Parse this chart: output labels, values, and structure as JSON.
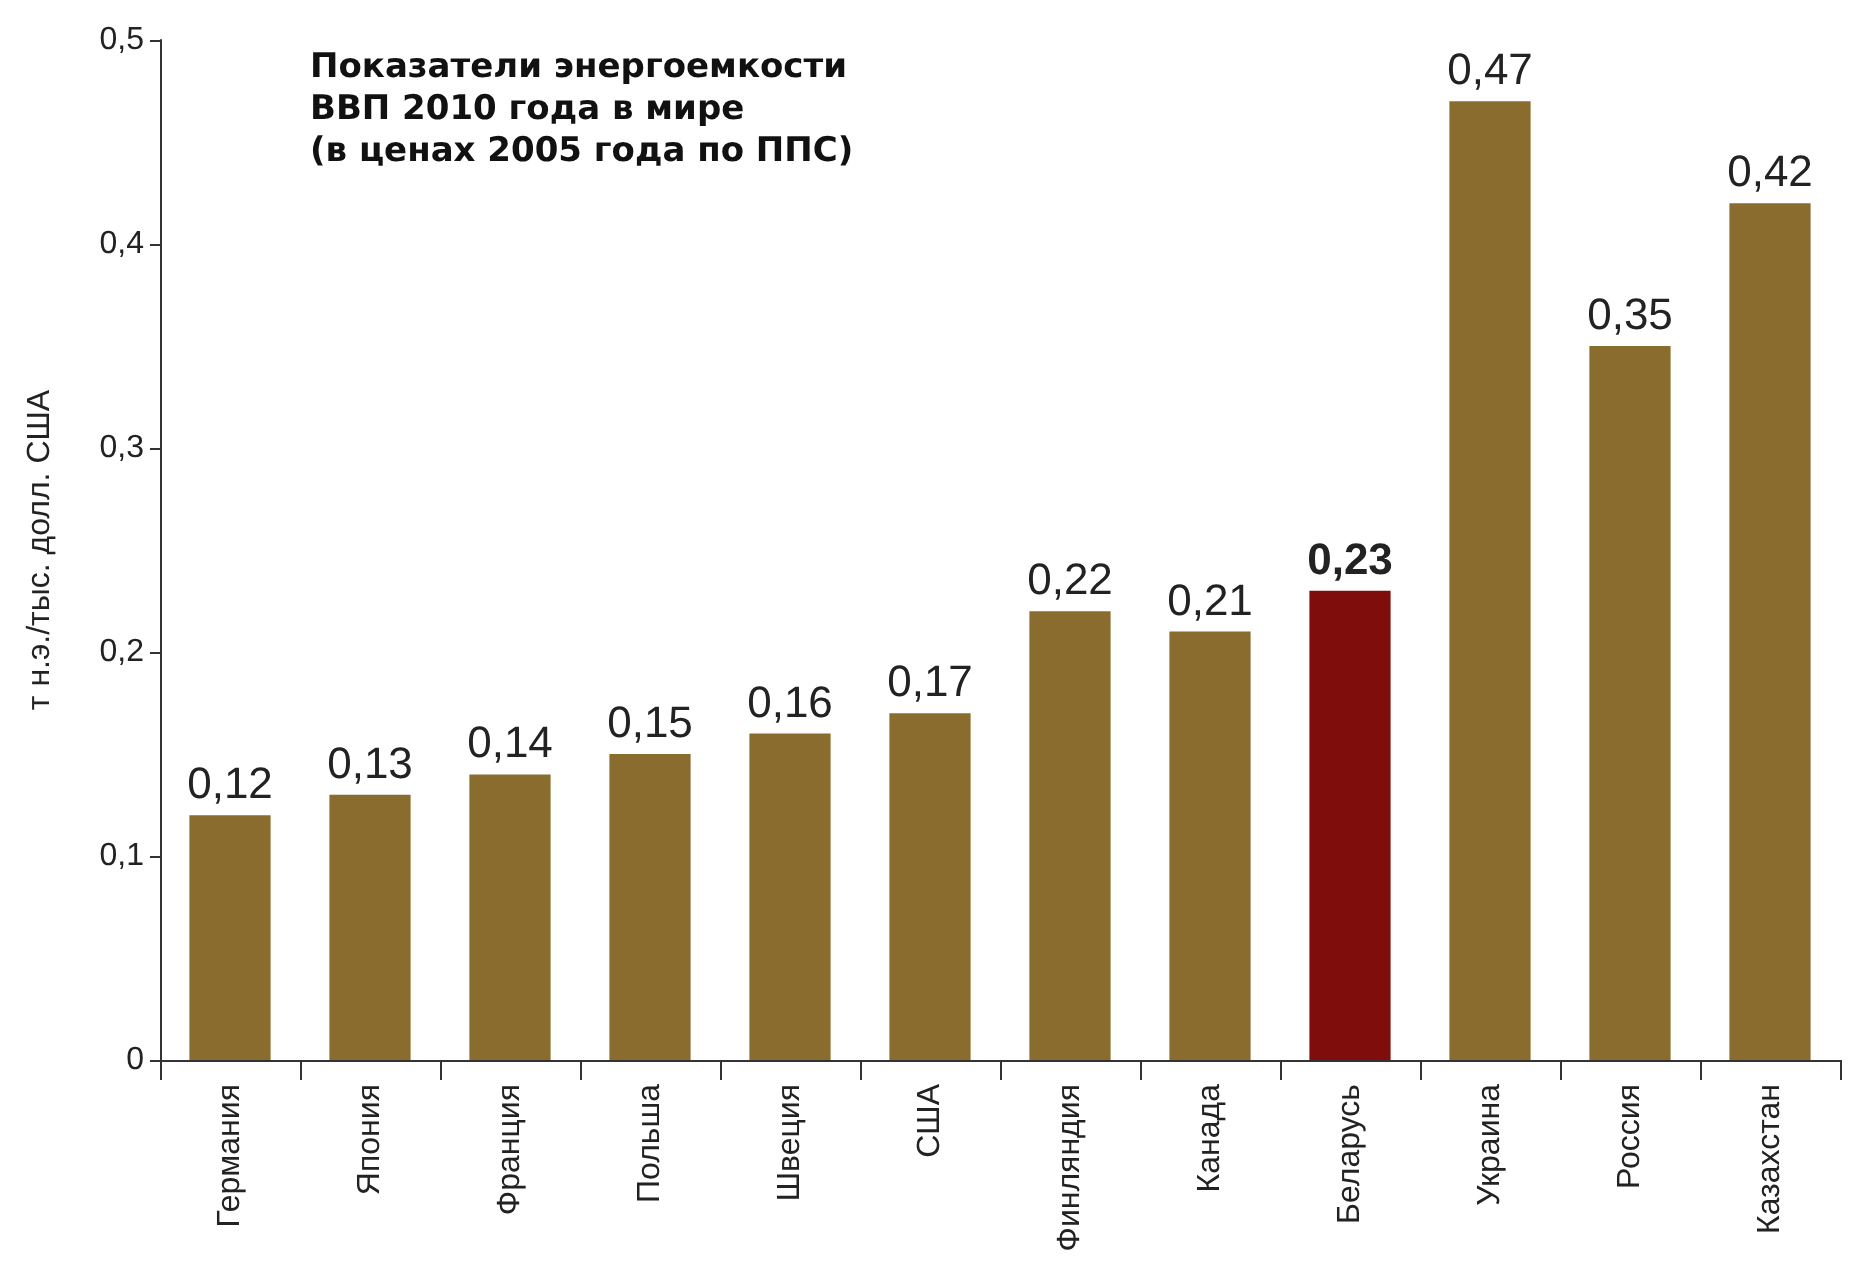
{
  "chart_data": {
    "type": "bar",
    "title": "Показатели энергоемкости\nВВП 2010 года в мире\n(в ценах 2005 года по ППС)",
    "ylabel": "т н.э./тыс. долл. США",
    "categories": [
      "Германия",
      "Япония",
      "Франция",
      "Польша",
      "Швеция",
      "США",
      "Финляндия",
      "Канада",
      "Беларусь",
      "Украина",
      "Россия",
      "Казахстан"
    ],
    "values": [
      0.12,
      0.13,
      0.14,
      0.15,
      0.16,
      0.17,
      0.22,
      0.21,
      0.23,
      0.47,
      0.35,
      0.42
    ],
    "value_labels": [
      "0,12",
      "0,13",
      "0,14",
      "0,15",
      "0,16",
      "0,17",
      "0,22",
      "0,21",
      "0,23",
      "0,47",
      "0,35",
      "0,42"
    ],
    "colors": [
      "#8a6d2e",
      "#8a6d2e",
      "#8a6d2e",
      "#8a6d2e",
      "#8a6d2e",
      "#8a6d2e",
      "#8a6d2e",
      "#8a6d2e",
      "#7f0d0b",
      "#8a6d2e",
      "#8a6d2e",
      "#8a6d2e"
    ],
    "ylim": [
      0,
      0.5
    ],
    "yticks": [
      {
        "value": 0,
        "label": "0"
      },
      {
        "value": 0.1,
        "label": "0,1"
      },
      {
        "value": 0.2,
        "label": "0,2"
      },
      {
        "value": 0.3,
        "label": "0,3"
      },
      {
        "value": 0.4,
        "label": "0,4"
      },
      {
        "value": 0.5,
        "label": "0,5"
      }
    ],
    "grid": false
  }
}
